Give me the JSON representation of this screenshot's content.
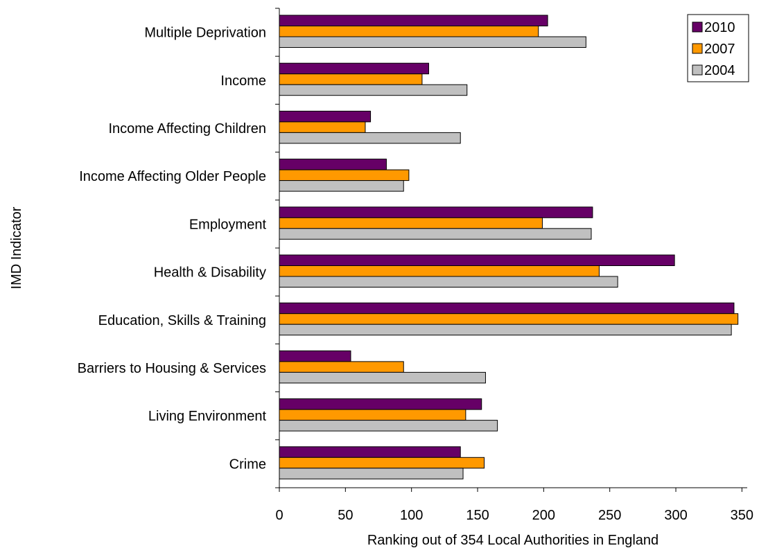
{
  "chart_data": {
    "type": "bar",
    "orientation": "horizontal",
    "title": "",
    "xlabel": "Ranking out of 354 Local Authorities in England",
    "ylabel": "IMD Indicator",
    "xlim": [
      0,
      354
    ],
    "xticks": [
      0,
      50,
      100,
      150,
      200,
      250,
      300,
      350
    ],
    "grid": false,
    "legend_position": "top-right",
    "categories": [
      "Multiple Deprivation",
      "Income",
      "Income Affecting Children",
      "Income Affecting Older People",
      "Employment",
      "Health & Disability",
      "Education, Skills & Training",
      "Barriers to Housing & Services",
      "Living Environment",
      "Crime"
    ],
    "series": [
      {
        "name": "2010",
        "color": "#660066",
        "values": [
          203,
          113,
          69,
          81,
          237,
          299,
          344,
          54,
          153,
          137
        ]
      },
      {
        "name": "2007",
        "color": "#ff9900",
        "values": [
          196,
          108,
          65,
          98,
          199,
          242,
          347,
          94,
          141,
          155
        ]
      },
      {
        "name": "2004",
        "color": "#c0c0c0",
        "values": [
          232,
          142,
          137,
          94,
          236,
          256,
          342,
          156,
          165,
          139
        ]
      }
    ]
  }
}
